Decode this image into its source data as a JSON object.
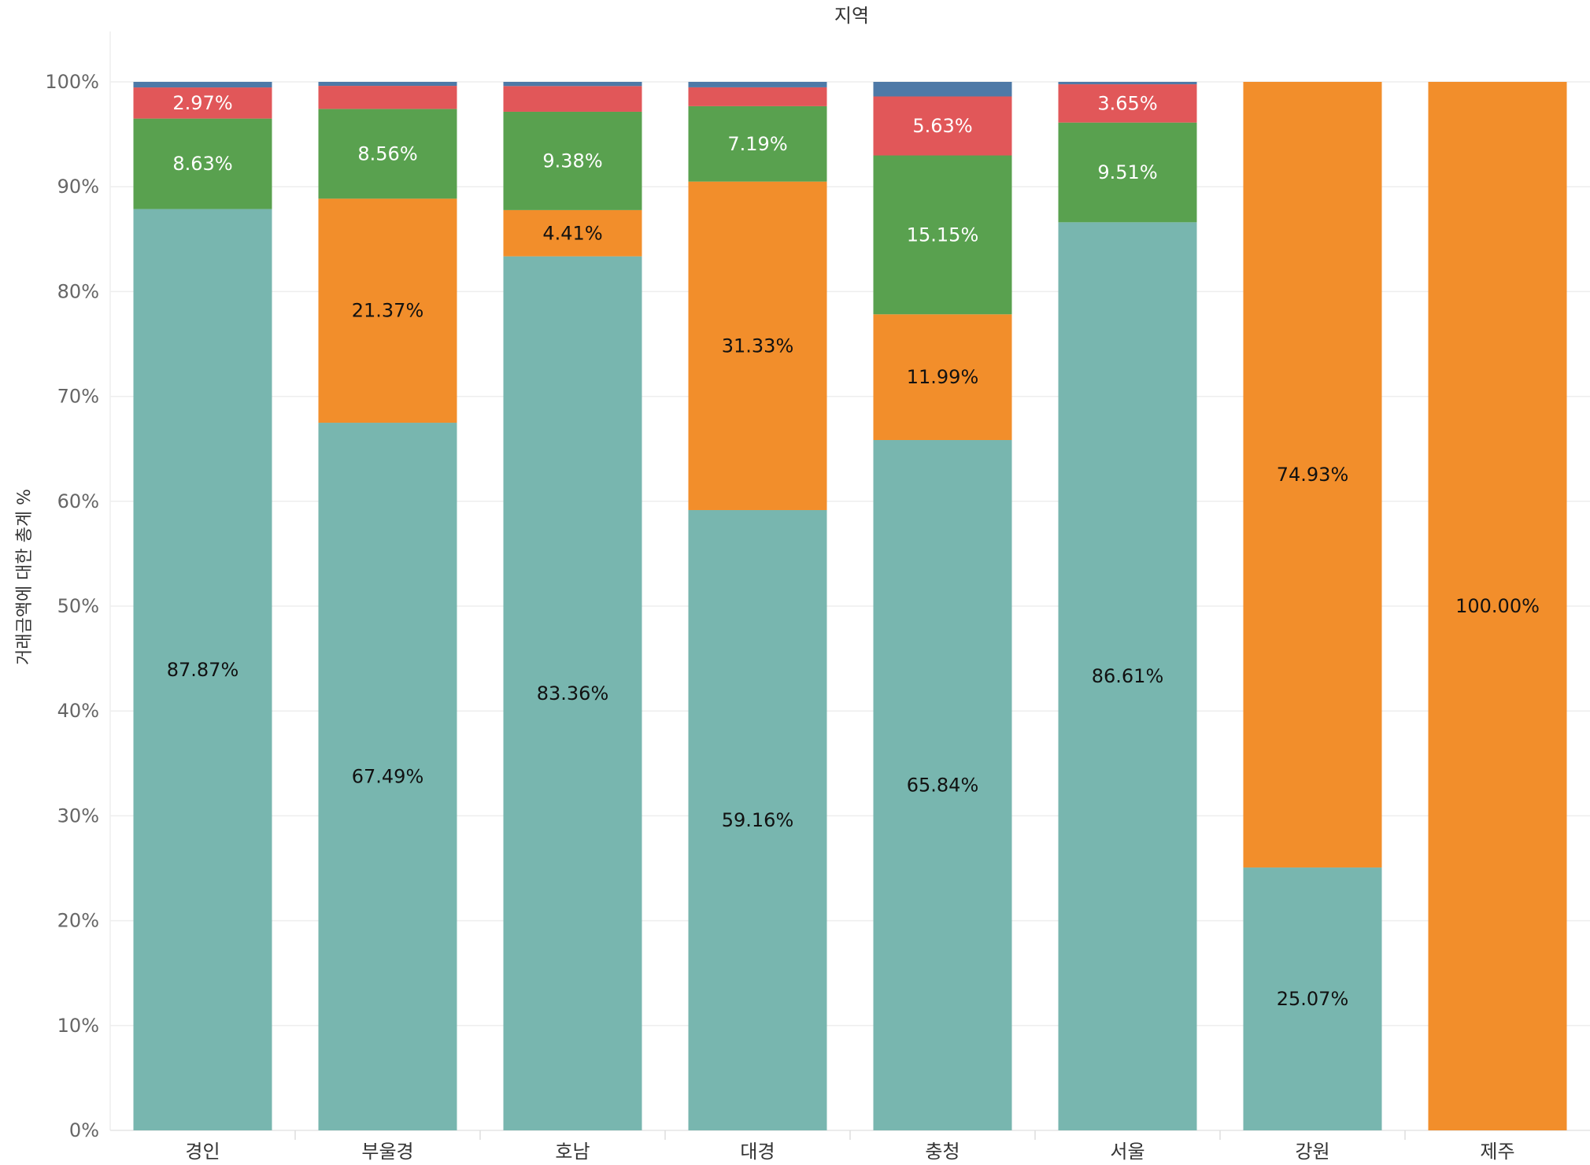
{
  "chart_data": {
    "type": "bar",
    "stacked": true,
    "title": "지역",
    "xlabel": "",
    "ylabel": "거래금액에 대한 총계 %",
    "ylim": [
      0,
      100
    ],
    "yticks": [
      "0%",
      "10%",
      "20%",
      "30%",
      "40%",
      "50%",
      "60%",
      "70%",
      "80%",
      "90%",
      "100%"
    ],
    "categories": [
      "경인",
      "부울경",
      "호남",
      "대경",
      "충청",
      "서울",
      "강원",
      "제주"
    ],
    "series": [
      {
        "name": "teal",
        "color": "#78B6AF",
        "label_color": "#111111",
        "values": [
          87.87,
          67.49,
          83.36,
          59.16,
          65.84,
          86.61,
          25.07,
          0
        ],
        "labels": [
          "87.87%",
          "67.49%",
          "83.36%",
          "59.16%",
          "65.84%",
          "86.61%",
          "25.07%",
          ""
        ]
      },
      {
        "name": "orange",
        "color": "#F28E2B",
        "label_color": "#111111",
        "values": [
          0,
          21.37,
          4.41,
          31.33,
          11.99,
          0,
          74.93,
          100
        ],
        "labels": [
          "",
          "21.37%",
          "4.41%",
          "31.33%",
          "11.99%",
          "",
          "74.93%",
          "100.00%"
        ]
      },
      {
        "name": "green",
        "color": "#59A14F",
        "label_color": "#ffffff",
        "values": [
          8.63,
          8.56,
          9.38,
          7.19,
          15.15,
          9.51,
          0,
          0
        ],
        "labels": [
          "8.63%",
          "8.56%",
          "9.38%",
          "7.19%",
          "15.15%",
          "9.51%",
          "",
          ""
        ]
      },
      {
        "name": "red",
        "color": "#E15759",
        "label_color": "#ffffff",
        "values": [
          2.97,
          2.2,
          2.45,
          1.8,
          5.63,
          3.65,
          0,
          0
        ],
        "labels": [
          "2.97%",
          "",
          "",
          "",
          "5.63%",
          "3.65%",
          "",
          ""
        ]
      },
      {
        "name": "blue",
        "color": "#4E79A7",
        "label_color": "#ffffff",
        "values": [
          0.53,
          0.38,
          0.4,
          0.52,
          1.39,
          0.23,
          0,
          0
        ],
        "labels": [
          "",
          "",
          "",
          "",
          "",
          "",
          "",
          ""
        ]
      }
    ]
  }
}
